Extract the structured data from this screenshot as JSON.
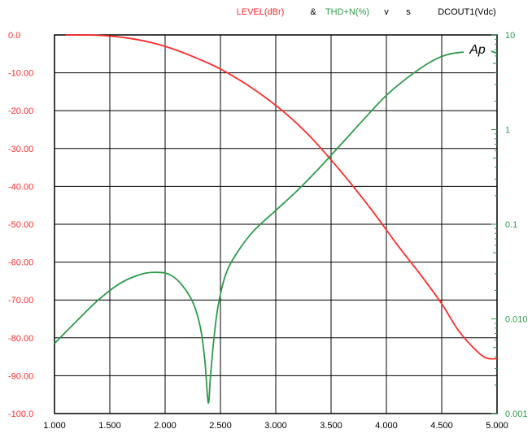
{
  "header": {
    "level_label": "LEVEL(dBr)",
    "amp": "&",
    "thd_label": "THD+N(%)",
    "v": "v",
    "s": "s",
    "dcout_label": "DCOUT1(Vdc)"
  },
  "logo_text": "Ap",
  "colors": {
    "level": "#ff2a2a",
    "thd": "#2e9a4a",
    "grid": "#000000",
    "tick_left": "#ff2a2a",
    "tick_right": "#2e9a4a",
    "tick_bottom": "#000000"
  },
  "chart_data": {
    "type": "line",
    "x_ticks": [
      "1.000",
      "1.500",
      "2.000",
      "2.500",
      "3.000",
      "3.500",
      "4.000",
      "4.500",
      "5.000"
    ],
    "left_ticks": [
      "0.0",
      "-10.00",
      "-20.00",
      "-30.00",
      "-40.00",
      "-50.00",
      "-60.00",
      "-70.00",
      "-80.00",
      "-90.00",
      "-100.0"
    ],
    "right_ticks": [
      "10",
      "1",
      "0.1",
      "0.010",
      "0.001"
    ],
    "xlim": [
      1.0,
      5.0
    ],
    "ylim_left": [
      -100,
      0
    ],
    "ylim_right": [
      0.001,
      10
    ],
    "right_scale": "log",
    "grid": true,
    "series": [
      {
        "name": "LEVEL(dBr)",
        "axis": "left",
        "x": [
          1.1,
          1.3,
          1.5,
          1.7,
          1.9,
          2.1,
          2.3,
          2.5,
          2.7,
          2.9,
          3.1,
          3.3,
          3.5,
          3.7,
          3.9,
          4.1,
          4.3,
          4.5,
          4.65,
          4.8,
          4.9,
          5.0
        ],
        "y": [
          0.0,
          0.0,
          -0.3,
          -1.0,
          -2.2,
          -4.0,
          -6.3,
          -9.0,
          -12.4,
          -16.4,
          -21.0,
          -26.5,
          -33.0,
          -40.0,
          -47.5,
          -55.5,
          -63.0,
          -71.0,
          -78.0,
          -83.0,
          -85.3,
          -85.5
        ]
      },
      {
        "name": "THD+N(%)",
        "axis": "right",
        "x": [
          1.0,
          1.2,
          1.4,
          1.6,
          1.8,
          1.95,
          2.05,
          2.15,
          2.25,
          2.32,
          2.36,
          2.39,
          2.41,
          2.44,
          2.48,
          2.55,
          2.65,
          2.8,
          3.0,
          3.2,
          3.4,
          3.6,
          3.8,
          4.0,
          4.2,
          4.4,
          4.55,
          4.7,
          4.85,
          4.95,
          5.0
        ],
        "y": [
          0.0055,
          0.0095,
          0.016,
          0.024,
          0.03,
          0.031,
          0.029,
          0.023,
          0.015,
          0.008,
          0.0035,
          0.0013,
          0.0025,
          0.006,
          0.014,
          0.03,
          0.05,
          0.085,
          0.14,
          0.23,
          0.4,
          0.72,
          1.3,
          2.3,
          3.6,
          5.2,
          6.2,
          6.6,
          6.8,
          6.7,
          6.4
        ]
      }
    ]
  }
}
